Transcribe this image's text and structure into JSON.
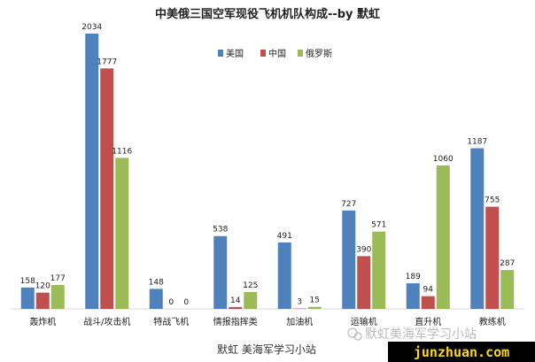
{
  "chart_data": {
    "type": "bar",
    "title": "中美俄三国空军现役飞机机队构成--by 默虹",
    "categories": [
      "轰炸机",
      "战斗/攻击机",
      "特战飞机",
      "情报指挥类",
      "加油机",
      "运输机",
      "直升机",
      "教练机"
    ],
    "series": [
      {
        "name": "美国",
        "color": "#4f81bd",
        "values": [
          158,
          2034,
          148,
          538,
          491,
          727,
          189,
          1187
        ]
      },
      {
        "name": "中国",
        "color": "#c0504d",
        "values": [
          120,
          1777,
          0,
          14,
          3,
          390,
          94,
          755
        ]
      },
      {
        "name": "俄罗斯",
        "color": "#9bbb59",
        "values": [
          177,
          1116,
          0,
          125,
          15,
          571,
          1060,
          287
        ]
      }
    ],
    "ylim": [
      0,
      2034
    ],
    "legend_position": "top-center",
    "grid": false
  },
  "watermarks": {
    "caption": "默虹 美海军学习小站",
    "wechat": "默虹美海军学习小站",
    "site": "junzhuan.com"
  }
}
